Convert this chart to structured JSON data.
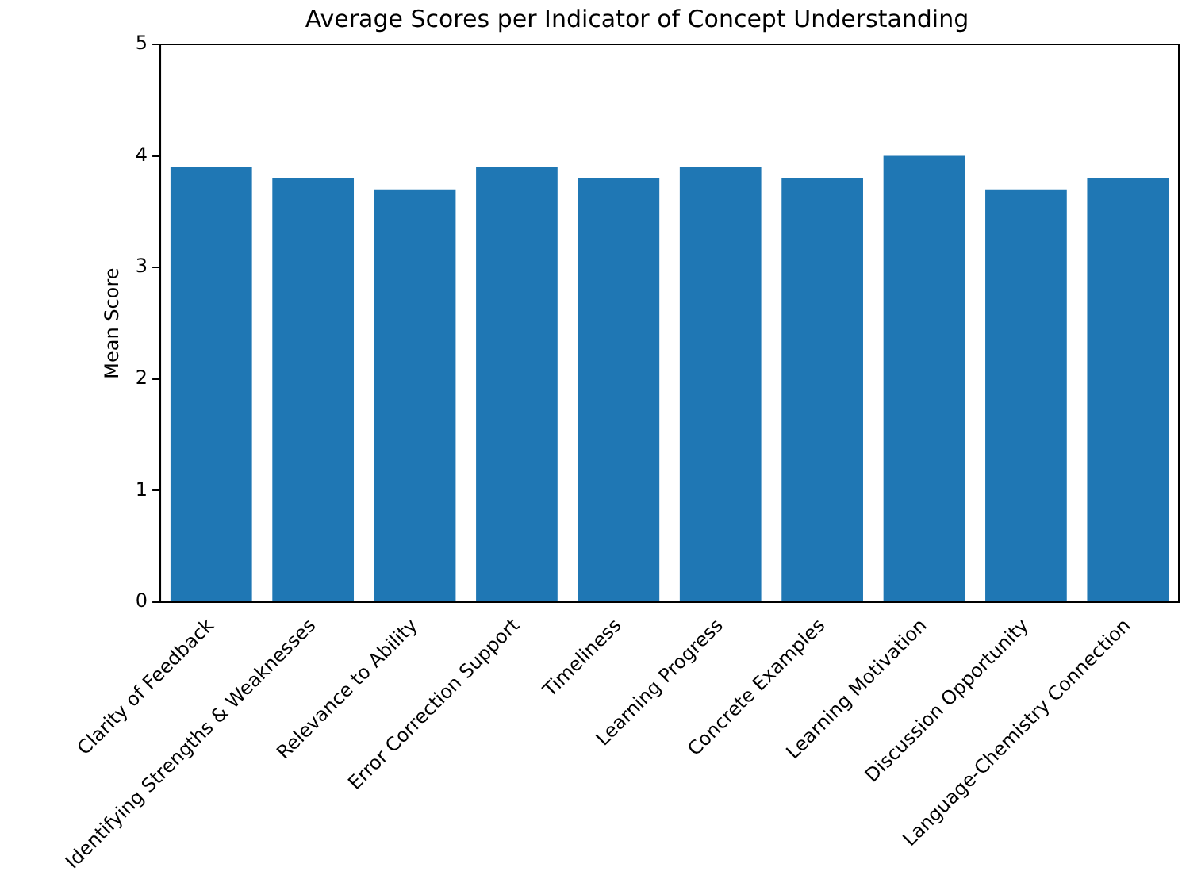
{
  "chart_data": {
    "type": "bar",
    "title": "Average Scores per Indicator of Concept Understanding",
    "ylabel": "Mean Score",
    "categories": [
      "Clarity of Feedback",
      "Identifying Strengths & Weaknesses",
      "Relevance to Ability",
      "Error Correction Support",
      "Timeliness",
      "Learning Progress",
      "Concrete Examples",
      "Learning Motivation",
      "Discussion Opportunity",
      "Language-Chemistry Connection"
    ],
    "values": [
      3.9,
      3.8,
      3.7,
      3.9,
      3.8,
      3.9,
      3.8,
      4.0,
      3.7,
      3.8
    ],
    "color": "#1f77b4",
    "ylim": [
      0,
      5
    ],
    "yticks": [
      0,
      1,
      2,
      3,
      4,
      5
    ],
    "grid": false
  }
}
